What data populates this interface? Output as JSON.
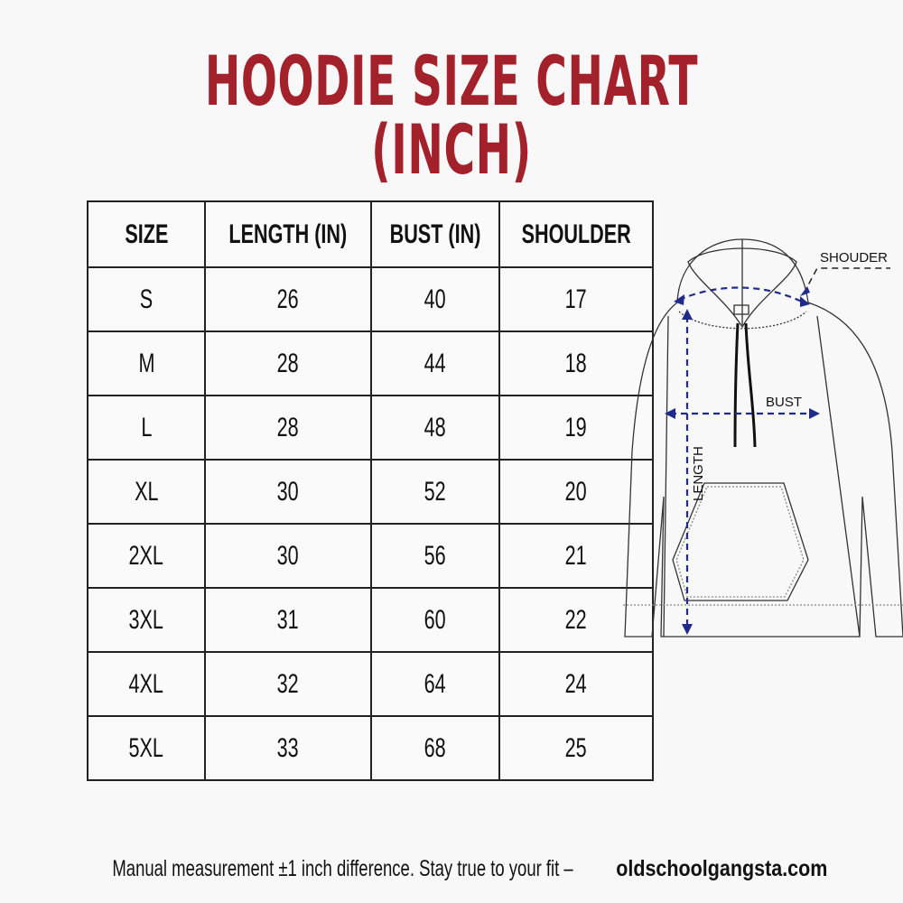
{
  "title": "HOODIE SIZE CHART (INCH)",
  "table": {
    "headers": [
      "SIZE",
      "LENGTH (IN)",
      "BUST (IN)",
      "SHOULDER"
    ],
    "rows": [
      [
        "S",
        "26",
        "40",
        "17"
      ],
      [
        "M",
        "28",
        "44",
        "18"
      ],
      [
        "L",
        "28",
        "48",
        "19"
      ],
      [
        "XL",
        "30",
        "52",
        "20"
      ],
      [
        "2XL",
        "30",
        "56",
        "21"
      ],
      [
        "3XL",
        "31",
        "60",
        "22"
      ],
      [
        "4XL",
        "32",
        "64",
        "24"
      ],
      [
        "5XL",
        "33",
        "68",
        "25"
      ]
    ]
  },
  "diagram": {
    "shoulder_label": "SHOUDER",
    "bust_label": "BUST",
    "length_label": "LENGTH",
    "arrow_color": "#1f2a8a"
  },
  "footer": {
    "note": "Manual measurement ±1 inch difference. Stay true to your fit –",
    "site": "oldschoolgangsta.com"
  },
  "colors": {
    "title": "#a3212b"
  }
}
